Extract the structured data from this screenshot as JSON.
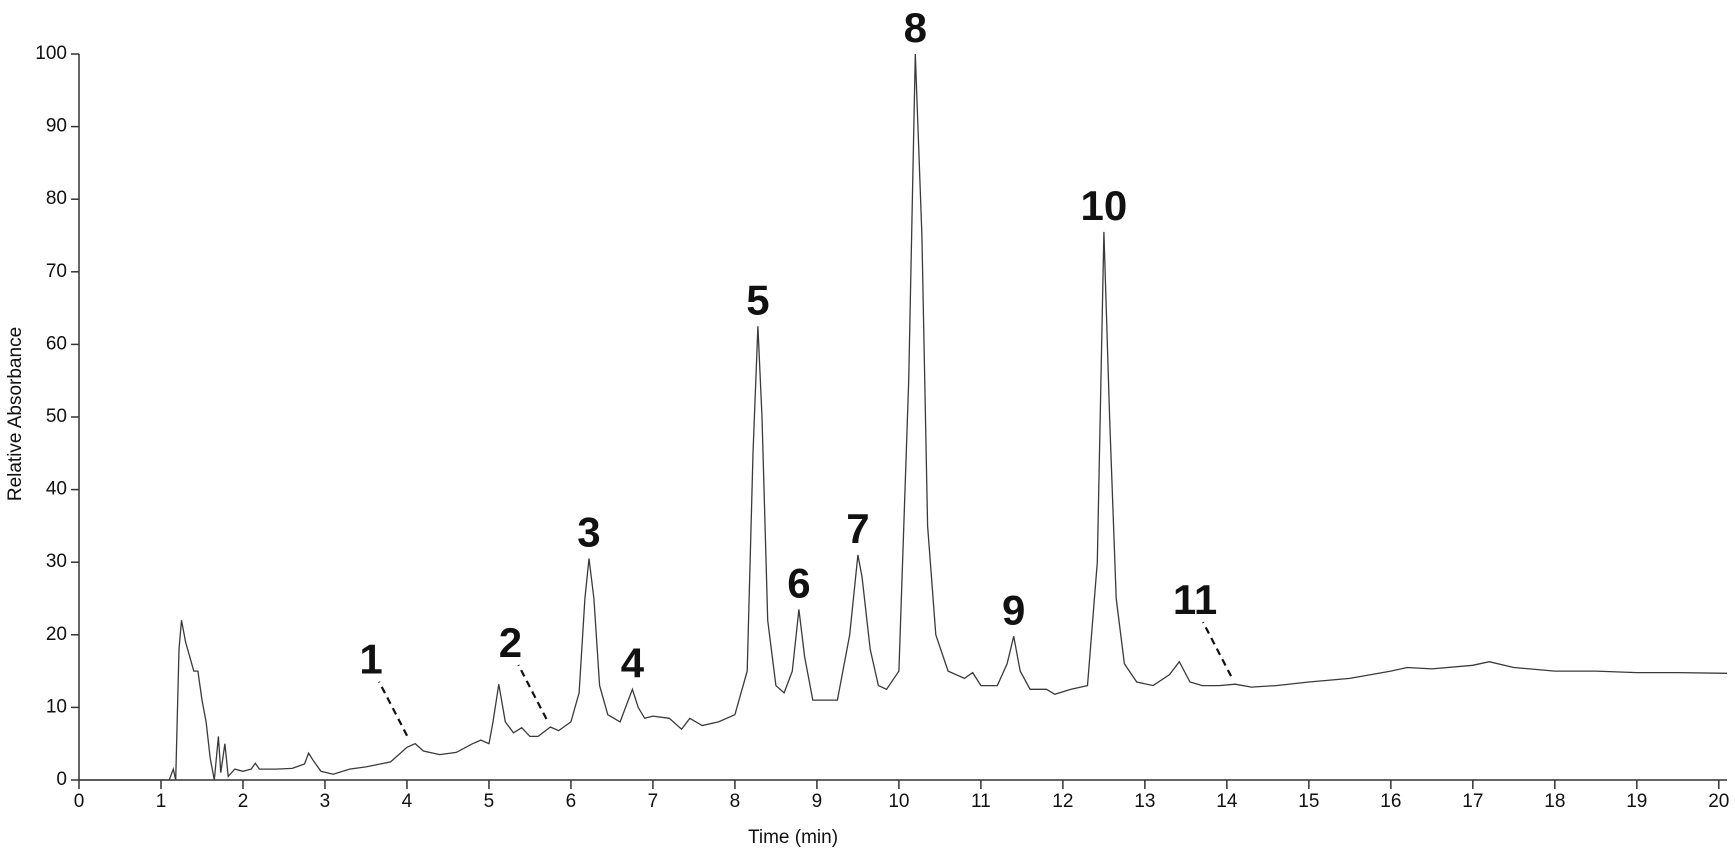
{
  "chart_data": {
    "type": "line",
    "xlabel": "Time (min)",
    "ylabel": "Relative Absorbance",
    "xlim": [
      0,
      20.1
    ],
    "ylim": [
      0,
      100
    ],
    "xticks": [
      0,
      1,
      2,
      3,
      4,
      5,
      6,
      7,
      8,
      9,
      10,
      11,
      12,
      13,
      14,
      15,
      16,
      17,
      18,
      19,
      20
    ],
    "yticks": [
      0,
      10,
      20,
      30,
      40,
      50,
      60,
      70,
      80,
      90,
      100
    ],
    "color": "#3a3a3a",
    "x": [
      0,
      1.1,
      1.15,
      1.18,
      1.22,
      1.25,
      1.3,
      1.35,
      1.4,
      1.45,
      1.5,
      1.55,
      1.6,
      1.65,
      1.7,
      1.73,
      1.78,
      1.82,
      1.9,
      2.0,
      2.1,
      2.15,
      2.2,
      2.4,
      2.6,
      2.75,
      2.8,
      2.85,
      2.95,
      3.1,
      3.3,
      3.5,
      3.8,
      4.0,
      4.1,
      4.2,
      4.4,
      4.6,
      4.8,
      4.9,
      5.0,
      5.05,
      5.12,
      5.2,
      5.3,
      5.4,
      5.5,
      5.6,
      5.75,
      5.85,
      6.0,
      6.1,
      6.17,
      6.22,
      6.28,
      6.35,
      6.45,
      6.6,
      6.7,
      6.75,
      6.82,
      6.9,
      7.0,
      7.2,
      7.35,
      7.45,
      7.6,
      7.8,
      8.0,
      8.15,
      8.22,
      8.28,
      8.33,
      8.4,
      8.5,
      8.6,
      8.7,
      8.78,
      8.85,
      8.95,
      9.1,
      9.25,
      9.4,
      9.5,
      9.55,
      9.65,
      9.75,
      9.85,
      10.0,
      10.12,
      10.2,
      10.28,
      10.35,
      10.45,
      10.6,
      10.8,
      10.9,
      11.0,
      11.2,
      11.32,
      11.4,
      11.48,
      11.6,
      11.8,
      11.9,
      12.1,
      12.3,
      12.42,
      12.5,
      12.57,
      12.65,
      12.75,
      12.9,
      13.1,
      13.3,
      13.42,
      13.55,
      13.7,
      13.9,
      14.1,
      14.3,
      14.6,
      15.0,
      15.5,
      16.0,
      16.2,
      16.5,
      17.0,
      17.2,
      17.5,
      18.0,
      18.5,
      19.0,
      19.5,
      20.1
    ],
    "values": [
      0,
      0,
      1.5,
      0,
      18,
      22,
      19,
      17,
      15,
      15,
      11,
      8,
      3,
      0,
      6,
      1,
      5,
      0.5,
      1.5,
      1.2,
      1.5,
      2.3,
      1.5,
      1.5,
      1.6,
      2.2,
      3.7,
      2.8,
      1.2,
      0.8,
      1.5,
      1.8,
      2.5,
      4.5,
      5,
      4,
      3.5,
      3.8,
      5,
      5.5,
      5,
      8,
      13.2,
      8,
      6.5,
      7.2,
      6,
      6,
      7.3,
      6.8,
      8,
      12,
      25,
      30.5,
      25,
      13,
      9,
      8,
      11,
      12.5,
      10,
      8.5,
      8.8,
      8.5,
      7,
      8.5,
      7.5,
      8,
      9,
      15,
      45,
      62.5,
      50,
      22,
      13,
      12,
      15,
      23.5,
      17,
      11,
      11,
      11,
      20,
      31,
      28,
      18,
      13,
      12.5,
      15,
      55,
      100,
      75,
      35,
      20,
      15,
      14,
      14.8,
      13,
      13,
      16,
      19.8,
      15,
      12.5,
      12.5,
      11.8,
      12.5,
      13,
      30,
      75.5,
      50,
      25,
      16,
      13.5,
      13,
      14.5,
      16.3,
      13.5,
      13,
      13,
      13.2,
      12.8,
      13,
      13.5,
      14,
      15,
      15.5,
      15.3,
      15.8,
      16.3,
      15.5,
      15,
      15,
      14.8,
      14.8,
      14.7
    ],
    "annotations": [
      {
        "text": "1",
        "x": 4.05,
        "y": 5,
        "leader": true
      },
      {
        "text": "2",
        "x": 5.75,
        "y": 7.3,
        "leader": true
      },
      {
        "text": "3",
        "x": 6.22,
        "y": 30.5,
        "leader": false
      },
      {
        "text": "4",
        "x": 6.75,
        "y": 12.5,
        "leader": false
      },
      {
        "text": "5",
        "x": 8.28,
        "y": 62.5,
        "leader": false
      },
      {
        "text": "6",
        "x": 8.78,
        "y": 23.5,
        "leader": false
      },
      {
        "text": "7",
        "x": 9.5,
        "y": 31,
        "leader": false
      },
      {
        "text": "8",
        "x": 10.2,
        "y": 100,
        "leader": false
      },
      {
        "text": "9",
        "x": 11.4,
        "y": 19.8,
        "leader": false
      },
      {
        "text": "10",
        "x": 12.5,
        "y": 75.5,
        "leader": false
      },
      {
        "text": "11",
        "x": 14.1,
        "y": 13.2,
        "leader": true
      }
    ]
  }
}
